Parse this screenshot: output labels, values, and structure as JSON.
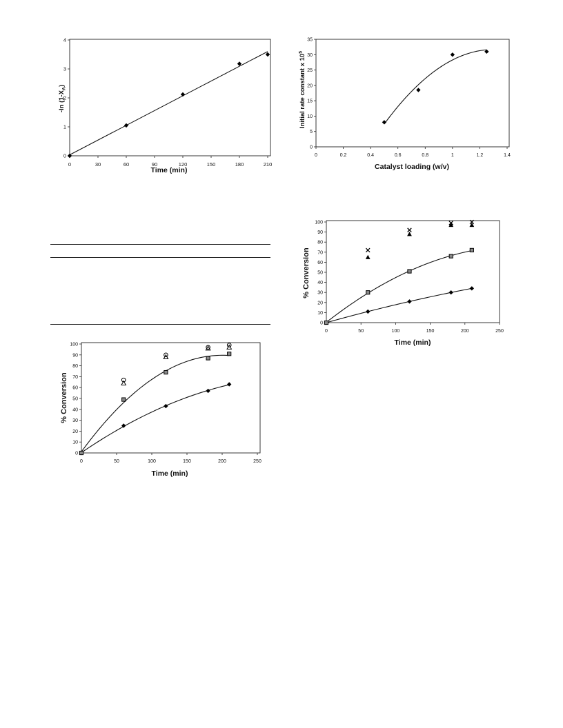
{
  "page": {
    "background": "#ffffff",
    "ink": "#000000"
  },
  "chart_data": [
    {
      "type": "scatter",
      "title": "",
      "xlabel": "Time (min)",
      "ylabel": {
        "text": "-ln (1-X",
        "sub": "A",
        "tail": ")"
      },
      "xlim": [
        0,
        210
      ],
      "ylim": [
        0,
        4
      ],
      "xticks": [
        "0",
        "30",
        "60",
        "90",
        "120",
        "150",
        "180",
        "210"
      ],
      "yticks": [
        "0",
        "1",
        "2",
        "3",
        "4"
      ],
      "grid": false,
      "legend": "none",
      "series": [
        {
          "marker": "diamond",
          "color": "#000000",
          "x": [
            0,
            60,
            120,
            180,
            210
          ],
          "y": [
            0,
            1.05,
            2.12,
            3.18,
            3.5
          ],
          "trendline": "linear"
        }
      ]
    },
    {
      "type": "scatter",
      "title": "",
      "xlabel": "Catalyst loading (w/v)",
      "ylabel": {
        "text": "Initial rate constant x 10",
        "sup": "5"
      },
      "xlim": [
        0,
        1.4
      ],
      "ylim": [
        0,
        35
      ],
      "xticks": [
        "0",
        "0.2",
        "0.4",
        "0.6",
        "0.8",
        "1",
        "1.2",
        "1.4"
      ],
      "yticks": [
        "0",
        "5",
        "10",
        "15",
        "20",
        "25",
        "30",
        "35"
      ],
      "grid": false,
      "legend": "none",
      "series": [
        {
          "marker": "diamond",
          "color": "#000000",
          "x": [
            0.5,
            0.75,
            1,
            1.25
          ],
          "y": [
            8,
            18.5,
            30,
            31
          ],
          "trendline": "poly2"
        }
      ]
    },
    {
      "type": "scatter",
      "title": "",
      "xlabel": "Time (min)",
      "ylabel": {
        "text": "% Conversion"
      },
      "xlim": [
        0,
        250
      ],
      "ylim": [
        0,
        100
      ],
      "xticks": [
        "0",
        "50",
        "100",
        "150",
        "200",
        "250"
      ],
      "yticks": [
        "0",
        "10",
        "20",
        "30",
        "40",
        "50",
        "60",
        "70",
        "80",
        "90",
        "100"
      ],
      "grid": false,
      "legend": "none",
      "series": [
        {
          "marker": "diamond",
          "color": "#000000",
          "x": [
            0,
            60,
            120,
            180,
            210
          ],
          "y": [
            0,
            25,
            43,
            57,
            63
          ],
          "trendline": "poly2"
        },
        {
          "marker": "square",
          "color": "#000000",
          "x": [
            0,
            60,
            120,
            180,
            210
          ],
          "y": [
            0,
            49,
            74,
            87,
            91
          ],
          "trendline": "poly2"
        },
        {
          "marker": "circle-open",
          "color": "#000000",
          "x": [
            60,
            120,
            180,
            210
          ],
          "y": [
            67,
            90,
            97,
            99
          ]
        },
        {
          "marker": "triangle-open",
          "color": "#000000",
          "x": [
            60,
            120,
            180,
            210
          ],
          "y": [
            64,
            88,
            96,
            97
          ]
        }
      ]
    },
    {
      "type": "scatter",
      "title": "",
      "xlabel": "Time (min)",
      "ylabel": {
        "text": "% Conversion"
      },
      "xlim": [
        0,
        250
      ],
      "ylim": [
        0,
        100
      ],
      "xticks": [
        "0",
        "50",
        "100",
        "150",
        "200",
        "250"
      ],
      "yticks": [
        "0",
        "10",
        "20",
        "30",
        "40",
        "50",
        "60",
        "70",
        "80",
        "90",
        "100"
      ],
      "grid": false,
      "legend": "none",
      "series": [
        {
          "marker": "diamond",
          "color": "#000000",
          "x": [
            0,
            60,
            120,
            180,
            210
          ],
          "y": [
            0,
            11,
            21,
            30,
            34
          ],
          "trendline": "poly2"
        },
        {
          "marker": "square",
          "color": "#000000",
          "x": [
            0,
            60,
            120,
            180,
            210
          ],
          "y": [
            0,
            30,
            51,
            66,
            72
          ],
          "trendline": "poly2"
        },
        {
          "marker": "triangle",
          "color": "#000000",
          "x": [
            60,
            120,
            180,
            210
          ],
          "y": [
            65,
            88,
            97,
            97
          ]
        },
        {
          "marker": "x",
          "color": "#000000",
          "x": [
            60,
            120,
            180,
            210
          ],
          "y": [
            72,
            92,
            99,
            100
          ]
        }
      ]
    }
  ]
}
